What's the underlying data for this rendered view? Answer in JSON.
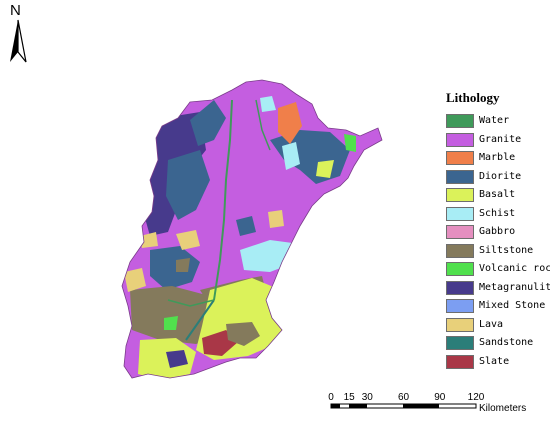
{
  "north_arrow": {
    "letter": "N",
    "icon": "north-arrow-icon"
  },
  "legend": {
    "title": "Lithology",
    "items": [
      {
        "label": "Water",
        "color": "#3f9a5a"
      },
      {
        "label": "Granite",
        "color": "#c45ee0"
      },
      {
        "label": "Marble",
        "color": "#f07f4a"
      },
      {
        "label": "Diorite",
        "color": "#3b6590"
      },
      {
        "label": "Basalt",
        "color": "#dbf25a"
      },
      {
        "label": "Schist",
        "color": "#a8edf5"
      },
      {
        "label": "Gabbro",
        "color": "#e58fc0"
      },
      {
        "label": "Siltstone",
        "color": "#847a5c"
      },
      {
        "label": "Volcanic rocks",
        "color": "#50e04d"
      },
      {
        "label": "Metagranulite",
        "color": "#473a8c"
      },
      {
        "label": "Mixed Stone",
        "color": "#7c9ef2"
      },
      {
        "label": "Lava",
        "color": "#e8d07a"
      },
      {
        "label": "Sandstone",
        "color": "#2b7e79"
      },
      {
        "label": "Slate",
        "color": "#a93747"
      }
    ]
  },
  "scale_bar": {
    "ticks": [
      "0",
      "15",
      "30",
      "60",
      "90",
      "120"
    ],
    "unit": "Kilometers"
  }
}
